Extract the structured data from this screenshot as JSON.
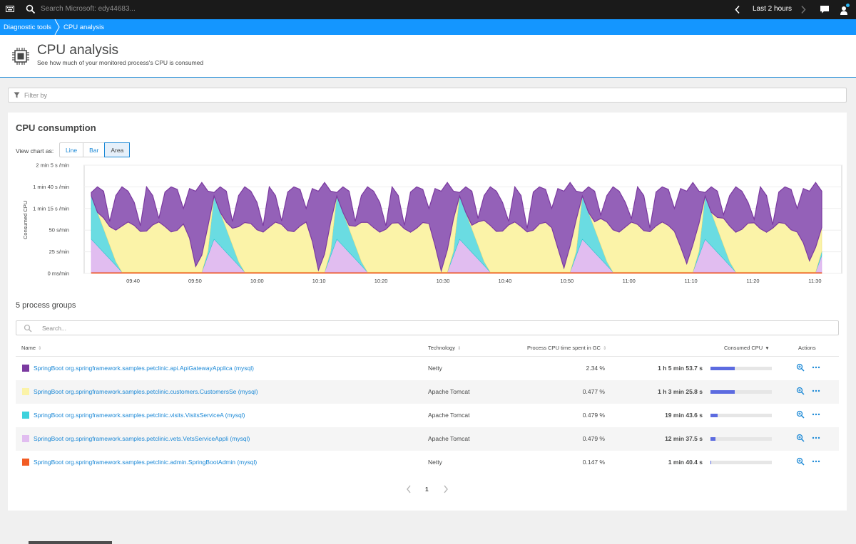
{
  "topbar": {
    "search_placeholder": "Search Microsoft: edy44683...",
    "timeframe": "Last 2 hours"
  },
  "breadcrumb": [
    "Diagnostic tools",
    "CPU analysis"
  ],
  "header": {
    "title": "CPU analysis",
    "subtitle": "See how much of your monitored process's CPU is consumed"
  },
  "filter": {
    "placeholder": "Filter by"
  },
  "card": {
    "title": "CPU consumption",
    "view_label": "View chart as:",
    "view_options": [
      "Line",
      "Bar",
      "Area"
    ],
    "selected_view": "Area"
  },
  "chart_data": {
    "type": "area",
    "stacked": true,
    "ylabel": "Consumed CPU",
    "yticks": [
      "0 ms/min",
      "25 s/min",
      "50 s/min",
      "1 min 15 s /min",
      "1 min 40 s /min",
      "2 min 5 s /min"
    ],
    "ylim_seconds_per_min": [
      0,
      125
    ],
    "xticks": [
      "09:40",
      "09:50",
      "10:00",
      "10:10",
      "10:20",
      "10:30",
      "10:40",
      "10:50",
      "11:00",
      "11:10",
      "11:20",
      "11:30"
    ],
    "grid": true,
    "series": [
      {
        "name": "SpringBoot org.springframework.samples.petclinic.admin.SpringBootAdmin (mysql)",
        "color": "#f25c24",
        "pattern": "flat-low"
      },
      {
        "name": "SpringBoot org.springframework.samples.petclinic.vets.VetsServiceAppli (mysql)",
        "color": "#e1bdf0",
        "pattern": "periodic-ramp"
      },
      {
        "name": "SpringBoot org.springframework.samples.petclinic.visits.VisitsServiceA (mysql)",
        "color": "#6adce2",
        "pattern": "periodic-ramp"
      },
      {
        "name": "SpringBoot org.springframework.samples.petclinic.customers.CustomersSe (mysql)",
        "color": "#fbf3a8",
        "pattern": "periodic-wave"
      },
      {
        "name": "SpringBoot org.springframework.samples.petclinic.api.ApiGatewayApplica (mysql)",
        "color": "#9461b8",
        "pattern": "periodic-spiky"
      }
    ],
    "approx_totals_seconds_per_min": [
      90,
      100,
      95,
      60,
      90,
      100,
      95,
      82,
      55,
      100,
      90,
      50,
      94,
      100,
      97,
      75,
      98,
      95,
      105,
      95
    ]
  },
  "process_groups": {
    "title": "5 process groups",
    "search_placeholder": "Search...",
    "columns": {
      "name": "Name",
      "technology": "Technology",
      "gc": "Process CPU time spent in GC",
      "cpu": "Consumed CPU",
      "actions": "Actions"
    },
    "rows": [
      {
        "name": "SpringBoot org.springframework.samples.petclinic.api.ApiGatewayApplica (mysql)",
        "color": "#7b3aa0",
        "technology": "Netty",
        "gc": "2.34 %",
        "cpu": "1 h 5 min 53.7 s",
        "share": 0.4
      },
      {
        "name": "SpringBoot org.springframework.samples.petclinic.customers.CustomersSe (mysql)",
        "color": "#fbf3a8",
        "technology": "Apache Tomcat",
        "gc": "0.477 %",
        "cpu": "1 h 3 min 25.8 s",
        "share": 0.39
      },
      {
        "name": "SpringBoot org.springframework.samples.petclinic.visits.VisitsServiceA (mysql)",
        "color": "#3dd2dc",
        "technology": "Apache Tomcat",
        "gc": "0.479 %",
        "cpu": "19 min 43.6 s",
        "share": 0.12
      },
      {
        "name": "SpringBoot org.springframework.samples.petclinic.vets.VetsServiceAppli (mysql)",
        "color": "#e1bdf0",
        "technology": "Apache Tomcat",
        "gc": "0.479 %",
        "cpu": "12 min 37.5 s",
        "share": 0.08
      },
      {
        "name": "SpringBoot org.springframework.samples.petclinic.admin.SpringBootAdmin (mysql)",
        "color": "#f25c24",
        "technology": "Netty",
        "gc": "0.147 %",
        "cpu": "1 min 40.4 s",
        "share": 0.01
      }
    ]
  },
  "pagination": {
    "current": "1"
  }
}
